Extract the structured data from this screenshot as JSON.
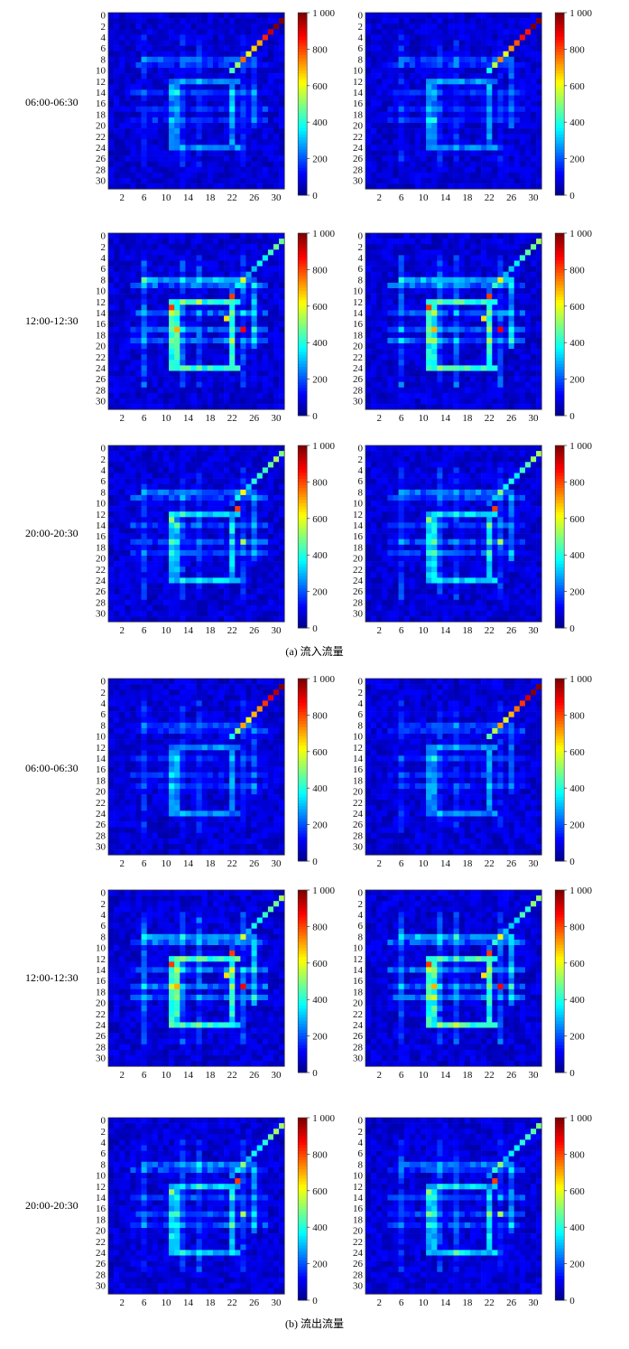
{
  "figure": {
    "caption_a": "(a) 流入流量",
    "caption_b": "(b) 流出流量"
  },
  "colormap": [
    "#00007f",
    "#0000ff",
    "#007fff",
    "#00ffff",
    "#7fff7f",
    "#ffff00",
    "#ff7f00",
    "#ff0000",
    "#7f0000"
  ],
  "chart_data": {
    "type": "heatmap",
    "grid_size": 32,
    "x_ticks": [
      "2",
      "6",
      "10",
      "14",
      "18",
      "22",
      "26",
      "30"
    ],
    "y_ticks": [
      "0",
      "2",
      "4",
      "6",
      "8",
      "10",
      "12",
      "14",
      "16",
      "18",
      "20",
      "22",
      "24",
      "26",
      "28",
      "30"
    ],
    "colorbar": {
      "min": 0,
      "max": 1000,
      "ticks": [
        {
          "value": 0,
          "label": "0"
        },
        {
          "value": 200,
          "label": "200"
        },
        {
          "value": 400,
          "label": "400"
        },
        {
          "value": 600,
          "label": "600"
        },
        {
          "value": 800,
          "label": "800"
        },
        {
          "value": 1000,
          "label": "1 000"
        }
      ]
    },
    "groups": [
      {
        "caption": "(a) 流入流量",
        "rows": [
          {
            "label": "06:00-06:30",
            "scale": 0.55,
            "diag_peak": 950,
            "hotspots": []
          },
          {
            "label": "12:00-12:30",
            "scale": 1.0,
            "diag_peak": 420,
            "hotspots": [
              {
                "x": 11,
                "y": 13,
                "v": 820
              },
              {
                "x": 22,
                "y": 11,
                "v": 820
              },
              {
                "x": 24,
                "y": 17,
                "v": 880
              },
              {
                "x": 12,
                "y": 17,
                "v": 700
              },
              {
                "x": 21,
                "y": 15,
                "v": 650
              }
            ]
          },
          {
            "label": "20:00-20:30",
            "scale": 0.75,
            "diag_peak": 450,
            "hotspots": [
              {
                "x": 23,
                "y": 11,
                "v": 820
              },
              {
                "x": 11,
                "y": 13,
                "v": 520
              },
              {
                "x": 24,
                "y": 17,
                "v": 540
              }
            ]
          }
        ]
      },
      {
        "caption": "(b) 流出流量",
        "rows": [
          {
            "label": "06:00-06:30",
            "scale": 0.55,
            "diag_peak": 950,
            "hotspots": []
          },
          {
            "label": "12:00-12:30",
            "scale": 1.0,
            "diag_peak": 420,
            "hotspots": [
              {
                "x": 11,
                "y": 13,
                "v": 820
              },
              {
                "x": 22,
                "y": 11,
                "v": 820
              },
              {
                "x": 24,
                "y": 17,
                "v": 880
              },
              {
                "x": 12,
                "y": 17,
                "v": 700
              },
              {
                "x": 21,
                "y": 15,
                "v": 650
              }
            ]
          },
          {
            "label": "20:00-20:30",
            "scale": 0.75,
            "diag_peak": 450,
            "hotspots": [
              {
                "x": 23,
                "y": 11,
                "v": 820
              },
              {
                "x": 11,
                "y": 13,
                "v": 520
              },
              {
                "x": 24,
                "y": 17,
                "v": 540
              }
            ]
          }
        ]
      }
    ]
  }
}
